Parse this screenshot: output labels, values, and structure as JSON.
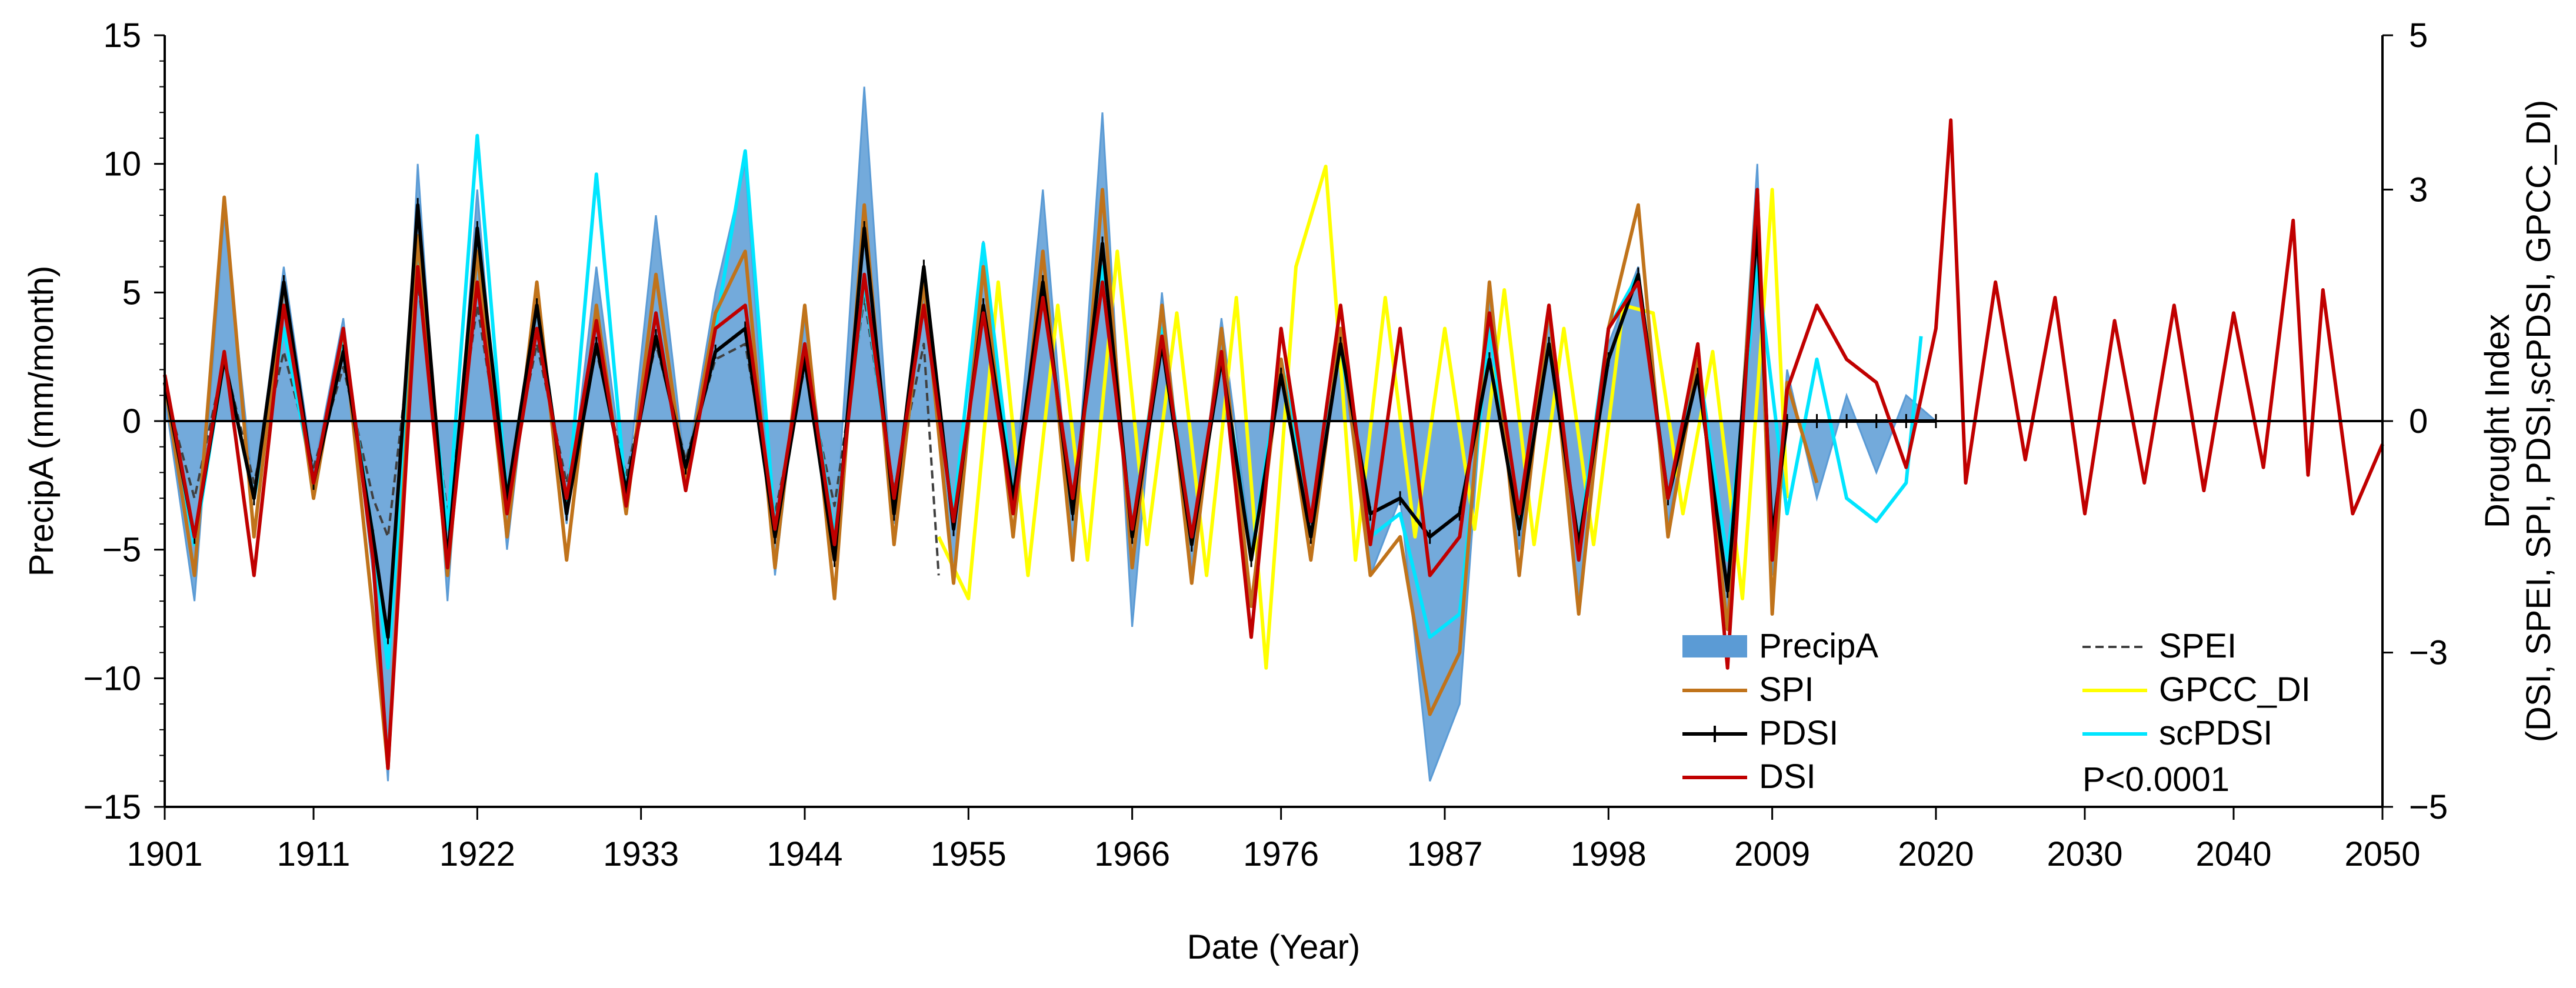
{
  "chart_data": {
    "type": "line",
    "title": "",
    "xlabel": "Date (Year)",
    "ylabel_left": "PrecipA (mm/month)",
    "ylabel_right_line1": "Drought Index",
    "ylabel_right_line2": "(DSI, SPEI, SPI, PDSI,scPDSI, GPCC_DI)",
    "xlim": [
      1901,
      2050
    ],
    "ylim_left": [
      -15,
      15
    ],
    "ylim_right": [
      -5,
      5
    ],
    "x_ticks": [
      1901,
      1911,
      1922,
      1933,
      1944,
      1955,
      1966,
      1976,
      1987,
      1998,
      2009,
      2020,
      2030,
      2040,
      2050
    ],
    "x_tick_labels": [
      "1901",
      "1911",
      "1922",
      "1933",
      "1944",
      "1955",
      "1966",
      "1976",
      "1987",
      "1998",
      "2009",
      "2020",
      "2030",
      "2040",
      "2050"
    ],
    "y_left_ticks": [
      15,
      10,
      5,
      0,
      -5,
      -10,
      -15
    ],
    "y_left_tick_labels": [
      "15",
      "10",
      "5",
      "0",
      "−5",
      "−10",
      "−15"
    ],
    "y_right_ticks": [
      5,
      3,
      0,
      -3,
      -5
    ],
    "y_right_tick_labels": [
      "5",
      "3",
      "0",
      "−3",
      "−5"
    ],
    "annotation": "P<0.0001",
    "legend_position": "bottom-right",
    "colors": {
      "PrecipA": "#5b9bd5",
      "SPI": "#c0731b",
      "PDSI": "#000000",
      "DSI": "#c00000",
      "SPEI": "#404040",
      "GPCC_DI": "#ffff00",
      "scPDSI": "#00e5ff"
    },
    "series": [
      {
        "name": "PrecipA",
        "axis": "left",
        "kind": "area",
        "x": [
          1901,
          1903,
          1905,
          1907,
          1909,
          1911,
          1913,
          1915,
          1916,
          1918,
          1920,
          1922,
          1924,
          1926,
          1928,
          1930,
          1932,
          1934,
          1936,
          1938,
          1940,
          1942,
          1944,
          1946,
          1948,
          1950,
          1952,
          1954,
          1956,
          1958,
          1960,
          1962,
          1964,
          1966,
          1968,
          1970,
          1972,
          1974,
          1976,
          1978,
          1980,
          1982,
          1984,
          1986,
          1988,
          1990,
          1992,
          1994,
          1996,
          1998,
          2000,
          2002,
          2004,
          2006,
          2008,
          2009,
          2010,
          2012,
          2014,
          2016,
          2018,
          2020
        ],
        "values": [
          1,
          -7,
          8,
          -3,
          6,
          -2,
          4,
          -6,
          -14,
          10,
          -7,
          9,
          -5,
          5,
          -4,
          6,
          -3,
          8,
          -2,
          5,
          10,
          -6,
          4,
          -5,
          13,
          -4,
          6,
          -6,
          7,
          -3,
          9,
          -5,
          12,
          -8,
          5,
          -6,
          4,
          -5,
          2,
          -4,
          3,
          -6,
          -3,
          -14,
          -11,
          5,
          -5,
          4,
          -7,
          3,
          6,
          -4,
          2,
          -8,
          10,
          -6,
          2,
          -3,
          1,
          -2,
          1,
          0
        ]
      },
      {
        "name": "SPI",
        "axis": "right",
        "kind": "line",
        "x": [
          1901,
          1903,
          1905,
          1907,
          1909,
          1911,
          1913,
          1915,
          1916,
          1918,
          1920,
          1922,
          1924,
          1926,
          1928,
          1930,
          1932,
          1934,
          1936,
          1938,
          1940,
          1942,
          1944,
          1946,
          1948,
          1950,
          1952,
          1954,
          1956,
          1958,
          1960,
          1962,
          1964,
          1966,
          1968,
          1970,
          1972,
          1974,
          1976,
          1978,
          1980,
          1982,
          1984,
          1986,
          1988,
          1990,
          1992,
          1994,
          1996,
          1998,
          2000,
          2002,
          2004,
          2006,
          2008,
          2009,
          2010,
          2012
        ],
        "values": [
          0.5,
          -2.0,
          2.9,
          -1.5,
          1.8,
          -1.0,
          1.2,
          -2.5,
          -4.5,
          2.4,
          -2.0,
          2.2,
          -1.5,
          1.8,
          -1.8,
          1.5,
          -1.2,
          1.9,
          -0.8,
          1.4,
          2.2,
          -1.9,
          1.5,
          -2.3,
          2.8,
          -1.6,
          1.8,
          -2.1,
          2.0,
          -1.5,
          2.2,
          -1.8,
          3.0,
          -1.9,
          1.5,
          -2.1,
          1.2,
          -2.4,
          0.8,
          -1.8,
          1.2,
          -2.0,
          -1.5,
          -3.8,
          -3.0,
          1.8,
          -2.0,
          1.5,
          -2.5,
          1.2,
          2.8,
          -1.5,
          0.8,
          -2.7,
          3.0,
          -2.5,
          0.5,
          -0.8
        ]
      },
      {
        "name": "PDSI",
        "axis": "right",
        "kind": "line-marker",
        "x": [
          1901,
          1903,
          1905,
          1907,
          1909,
          1911,
          1913,
          1915,
          1916,
          1918,
          1920,
          1922,
          1924,
          1926,
          1928,
          1930,
          1932,
          1934,
          1936,
          1938,
          1940,
          1942,
          1944,
          1946,
          1948,
          1950,
          1952,
          1954,
          1956,
          1958,
          1960,
          1962,
          1964,
          1966,
          1968,
          1970,
          1972,
          1974,
          1976,
          1978,
          1980,
          1982,
          1984,
          1986,
          1988,
          1990,
          1992,
          1994,
          1996,
          1998,
          2000,
          2002,
          2004,
          2006,
          2008,
          2009,
          2010,
          2012,
          2014,
          2016,
          2018,
          2020
        ],
        "values": [
          0.5,
          -1.5,
          0.8,
          -1.0,
          1.8,
          -0.8,
          0.9,
          -1.5,
          -2.8,
          2.8,
          -1.8,
          2.5,
          -1.0,
          1.5,
          -1.2,
          1.0,
          -0.9,
          1.1,
          -0.6,
          0.9,
          1.2,
          -1.5,
          0.8,
          -1.8,
          2.5,
          -1.2,
          2.0,
          -1.4,
          1.5,
          -1.0,
          1.8,
          -1.2,
          2.3,
          -1.5,
          1.0,
          -1.6,
          0.8,
          -1.8,
          0.6,
          -1.5,
          1.0,
          -1.2,
          -1.0,
          -1.5,
          -1.2,
          0.8,
          -1.4,
          1.0,
          -1.6,
          0.8,
          1.9,
          -1.0,
          0.6,
          -2.2,
          2.5,
          -1.5,
          0.0,
          0.0,
          0.0,
          0.0,
          0.0,
          0.0
        ]
      },
      {
        "name": "DSI",
        "axis": "right",
        "kind": "line",
        "x": [
          1901,
          1903,
          1905,
          1907,
          1909,
          1911,
          1913,
          1915,
          1916,
          1918,
          1920,
          1922,
          1924,
          1926,
          1928,
          1930,
          1932,
          1934,
          1936,
          1938,
          1940,
          1942,
          1944,
          1946,
          1948,
          1950,
          1952,
          1954,
          1956,
          1958,
          1960,
          1962,
          1964,
          1966,
          1968,
          1970,
          1972,
          1974,
          1976,
          1978,
          1980,
          1982,
          1984,
          1986,
          1988,
          1990,
          1992,
          1994,
          1996,
          1998,
          2000,
          2002,
          2004,
          2006,
          2008,
          2009,
          2010,
          2012,
          2014,
          2016,
          2018,
          2020,
          2021,
          2022,
          2024,
          2026,
          2028,
          2030,
          2032,
          2034,
          2036,
          2038,
          2040,
          2042,
          2044,
          2045,
          2046,
          2048,
          2050
        ],
        "values": [
          0.6,
          -1.5,
          0.9,
          -2.0,
          1.5,
          -0.8,
          1.2,
          -1.8,
          -4.5,
          2.0,
          -1.9,
          1.8,
          -1.2,
          1.2,
          -1.0,
          1.3,
          -1.1,
          1.4,
          -0.9,
          1.2,
          1.5,
          -1.4,
          1.0,
          -1.6,
          1.9,
          -1.0,
          1.5,
          -1.3,
          1.4,
          -1.2,
          1.6,
          -1.0,
          1.8,
          -1.4,
          1.1,
          -1.5,
          0.9,
          -2.8,
          1.2,
          -1.3,
          1.5,
          -1.6,
          1.2,
          -2.0,
          -1.5,
          1.4,
          -1.2,
          1.5,
          -1.8,
          1.2,
          1.8,
          -1.0,
          1.0,
          -3.2,
          3.0,
          -1.8,
          0.4,
          1.5,
          0.8,
          0.5,
          -0.6,
          1.2,
          3.9,
          -0.8,
          1.8,
          -0.5,
          1.6,
          -1.2,
          1.3,
          -0.8,
          1.5,
          -0.9,
          1.4,
          -0.6,
          2.6,
          -0.7,
          1.7,
          -1.2,
          -0.3
        ]
      },
      {
        "name": "SPEI",
        "axis": "right",
        "kind": "dashed",
        "x": [
          1901,
          1903,
          1905,
          1907,
          1909,
          1911,
          1913,
          1915,
          1916,
          1918,
          1920,
          1922,
          1924,
          1926,
          1928,
          1930,
          1932,
          1934,
          1936,
          1938,
          1940,
          1942,
          1944,
          1946,
          1948,
          1950,
          1952,
          1953
        ],
        "values": [
          0.4,
          -1.0,
          0.8,
          -0.8,
          0.9,
          -0.6,
          0.7,
          -1.0,
          -1.5,
          1.8,
          -1.2,
          1.5,
          -0.9,
          1.0,
          -0.8,
          0.9,
          -0.7,
          1.0,
          -0.5,
          0.8,
          1.0,
          -1.2,
          0.7,
          -1.1,
          1.6,
          -0.9,
          1.0,
          -2.0
        ]
      },
      {
        "name": "GPCC_DI",
        "axis": "right",
        "kind": "line",
        "x": [
          1953,
          1955,
          1957,
          1959,
          1961,
          1963,
          1965,
          1967,
          1969,
          1971,
          1973,
          1975,
          1977,
          1979,
          1981,
          1983,
          1985,
          1987,
          1989,
          1991,
          1993,
          1995,
          1997,
          1999,
          2001,
          2003,
          2005,
          2007,
          2009,
          2010
        ],
        "values": [
          -1.5,
          -2.3,
          1.8,
          -2.0,
          1.5,
          -1.8,
          2.2,
          -1.6,
          1.4,
          -2.0,
          1.6,
          -3.2,
          2.0,
          3.3,
          -1.8,
          1.6,
          -1.5,
          1.2,
          -1.4,
          1.7,
          -1.6,
          1.2,
          -1.6,
          1.5,
          1.4,
          -1.2,
          0.9,
          -2.3,
          3.0,
          -1.0
        ]
      },
      {
        "name": "scPDSI",
        "axis": "right",
        "kind": "line",
        "x": [
          1901,
          1903,
          1905,
          1907,
          1909,
          1911,
          1913,
          1915,
          1916,
          1918,
          1920,
          1922,
          1924,
          1926,
          1928,
          1930,
          1932,
          1934,
          1936,
          1938,
          1940,
          1942,
          1944,
          1946,
          1948,
          1950,
          1952,
          1954,
          1956,
          1958,
          1960,
          1962,
          1964,
          1966,
          1968,
          1970,
          1972,
          1974,
          1976,
          1978,
          1980,
          1982,
          1984,
          1986,
          1988,
          1990,
          1992,
          1994,
          1996,
          1998,
          2000,
          2002,
          2004,
          2006,
          2008,
          2010,
          2012,
          2014,
          2016,
          2018,
          2019
        ],
        "values": [
          0.5,
          -1.6,
          0.8,
          -1.0,
          1.2,
          -0.8,
          1.0,
          -1.5,
          -3.2,
          2.2,
          -1.4,
          3.7,
          -1.0,
          1.5,
          -1.2,
          3.2,
          -1.0,
          1.4,
          -0.8,
          1.2,
          3.5,
          -1.4,
          1.0,
          -1.5,
          1.8,
          -1.0,
          1.5,
          -1.2,
          2.3,
          -1.0,
          1.8,
          -1.2,
          2.0,
          -1.4,
          1.2,
          -1.5,
          0.9,
          -1.8,
          0.8,
          -1.3,
          1.0,
          -1.5,
          -1.2,
          -2.8,
          -2.5,
          1.2,
          -1.4,
          1.0,
          -1.6,
          1.2,
          1.9,
          -1.0,
          0.8,
          -1.8,
          2.0,
          -1.2,
          0.8,
          -1.0,
          -1.3,
          -0.8,
          1.1
        ]
      }
    ],
    "legend": [
      {
        "label": "PrecipA",
        "kind": "area",
        "color": "#5b9bd5"
      },
      {
        "label": "SPI",
        "kind": "line",
        "color": "#c0731b"
      },
      {
        "label": "PDSI",
        "kind": "line-marker",
        "color": "#000000"
      },
      {
        "label": "DSI",
        "kind": "line",
        "color": "#c00000"
      },
      {
        "label": "SPEI",
        "kind": "dashed",
        "color": "#404040"
      },
      {
        "label": "GPCC_DI",
        "kind": "line",
        "color": "#ffff00"
      },
      {
        "label": "scPDSI",
        "kind": "line",
        "color": "#00e5ff"
      }
    ]
  }
}
